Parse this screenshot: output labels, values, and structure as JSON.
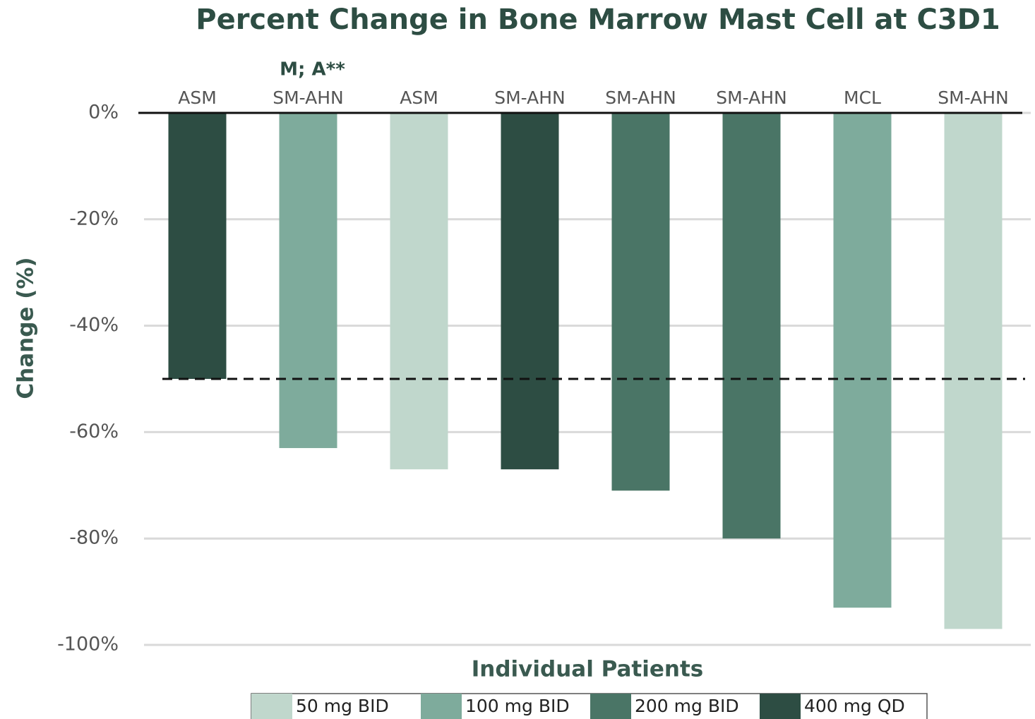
{
  "chart_data": {
    "type": "bar",
    "title": "Percent Change in Bone Marrow Mast Cell at C3D1",
    "x_label": "Individual Patients",
    "y_label": "Change (%)",
    "categories": [
      "ASM",
      "SM-AHN",
      "ASM",
      "SM-AHN",
      "SM-AHN",
      "SM-AHN",
      "MCL",
      "SM-AHN"
    ],
    "annotations": [
      {
        "text": "M; A**",
        "category": 1
      }
    ],
    "series": [
      {
        "name": "50 mg BID",
        "color": "#c0d7cc",
        "values": [
          null,
          null,
          -67,
          null,
          null,
          null,
          null,
          -97
        ]
      },
      {
        "name": "100 mg BID",
        "color": "#7eab9c",
        "values": [
          null,
          -63,
          null,
          null,
          null,
          null,
          -93,
          null
        ]
      },
      {
        "name": "200 mg BID",
        "color": "#4a7566",
        "values": [
          null,
          null,
          null,
          null,
          -71,
          -80,
          null,
          null
        ]
      },
      {
        "name": "400 mg QD",
        "color": "#2d4d43",
        "values": [
          -50,
          null,
          null,
          -67,
          null,
          null,
          null,
          null
        ]
      }
    ],
    "reference_line": -50,
    "ylim": [
      -100,
      0
    ],
    "yticks": [
      {
        "value": 0,
        "label": "0%"
      },
      {
        "value": -20,
        "label": "-20%"
      },
      {
        "value": -40,
        "label": "-40%"
      },
      {
        "value": -60,
        "label": "-60%"
      },
      {
        "value": -80,
        "label": "-80%"
      },
      {
        "value": -100,
        "label": "-100%"
      }
    ],
    "grid": true,
    "legend": "bottom"
  }
}
